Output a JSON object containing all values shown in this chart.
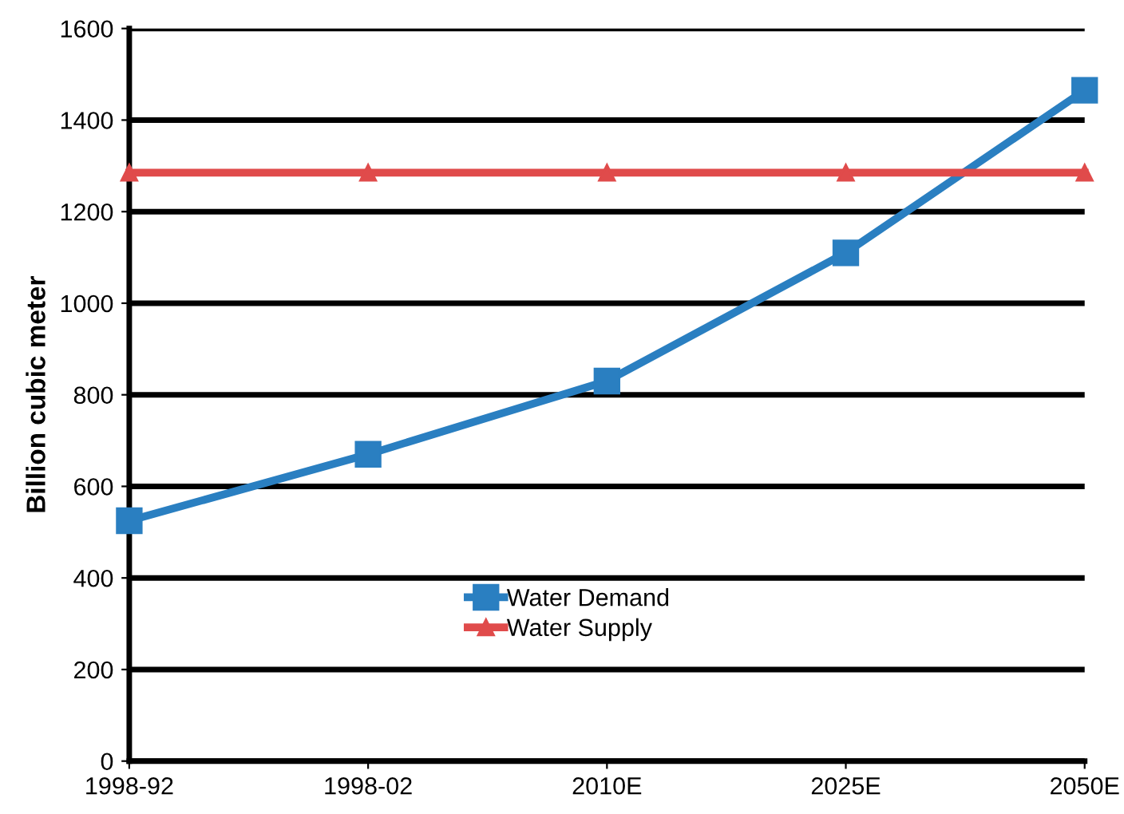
{
  "chart_data": {
    "type": "line",
    "ylabel": "Billion cubic meter",
    "categories": [
      "1998-92",
      "1998-02",
      "2010E",
      "2025E",
      "2050E"
    ],
    "series": [
      {
        "name": "Water Demand",
        "color": "#2a7fc1",
        "values": [
          525,
          670,
          830,
          1110,
          1465
        ],
        "marker": "square"
      },
      {
        "name": "Water Supply",
        "color": "#e04b4b",
        "values": [
          1285,
          1285,
          1285,
          1285,
          1285
        ],
        "marker": "triangle"
      }
    ],
    "ylim": [
      0,
      1600
    ],
    "yticks": [
      0,
      200,
      400,
      600,
      800,
      1000,
      1200,
      1400,
      1600
    ],
    "grid": "y",
    "legend": "center",
    "line_style": "solid"
  }
}
